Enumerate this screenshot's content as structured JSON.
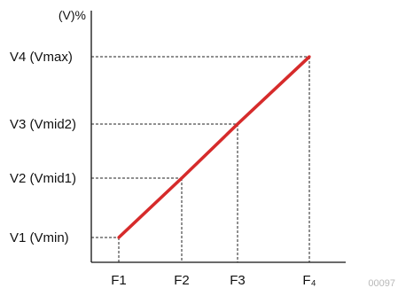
{
  "chart_data": {
    "type": "line",
    "title": "",
    "xlabel": "",
    "ylabel": "(V)%",
    "categories": [
      "F1",
      "F2",
      "F3",
      "F4"
    ],
    "y_levels": [
      "V1 (Vmin)",
      "V2 (Vmid1)",
      "V3 (Vmid2)",
      "V4 (Vmax)"
    ],
    "series": [
      {
        "color": "#d62b2b",
        "points": [
          {
            "x": "F1",
            "y": "V1 (Vmin)"
          },
          {
            "x": "F2",
            "y": "V2 (Vmid1)"
          },
          {
            "x": "F3",
            "y": "V3 (Vmid2)"
          },
          {
            "x": "F4",
            "y": "V4 (Vmax)"
          }
        ]
      }
    ],
    "guide_lines": "dashed",
    "grid": false,
    "legend": "none",
    "x_tick_labels": [
      "F1",
      "F2",
      "F3",
      "F₄"
    ],
    "corner_note": "00097"
  }
}
